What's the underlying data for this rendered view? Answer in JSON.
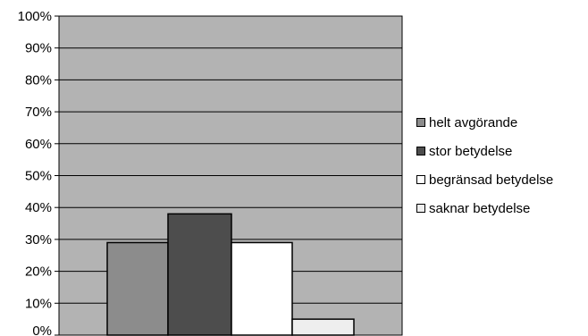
{
  "chart_data": {
    "type": "bar",
    "categories": [
      ""
    ],
    "series": [
      {
        "name": "helt avgörande",
        "values": [
          29
        ],
        "color": "#8c8c8c"
      },
      {
        "name": "stor betydelse",
        "values": [
          38
        ],
        "color": "#4d4d4d"
      },
      {
        "name": "begränsad betydelse",
        "values": [
          29
        ],
        "color": "#ffffff"
      },
      {
        "name": "saknar betydelse",
        "values": [
          5
        ],
        "color": "#eeeeee"
      }
    ],
    "title": "",
    "xlabel": "",
    "ylabel": "",
    "ylim": [
      0,
      100
    ],
    "yticks": [
      "0%",
      "10%",
      "20%",
      "30%",
      "40%",
      "50%",
      "60%",
      "70%",
      "80%",
      "90%",
      "100%"
    ],
    "grid": true,
    "legend": "right",
    "plot_background": "#b3b3b3"
  }
}
